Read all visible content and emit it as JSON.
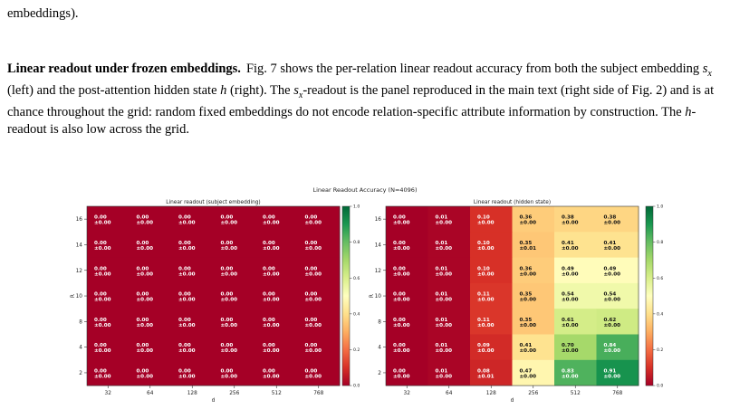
{
  "top_text": "embeddings).",
  "paragraph": {
    "heading": "Linear readout under frozen embeddings.",
    "segments": [
      {
        "t": "Fig. 7 shows the per-relation linear readout accuracy from both the subject embedding "
      },
      {
        "m": "s",
        "sub": "x"
      },
      {
        "t": " (left) and the post-attention hidden state "
      },
      {
        "m": "h"
      },
      {
        "t": " (right). The "
      },
      {
        "m": "s",
        "sub": "x"
      },
      {
        "t": "-readout is the panel reproduced in the main text (right side of Fig. 2) and is at chance throughout the grid: random fixed embeddings do not encode relation-specific attribute information by construction. The "
      },
      {
        "m": "h"
      },
      {
        "t": "-readout is also low across the grid."
      }
    ]
  },
  "chart_data": {
    "type": "heatmap",
    "suptitle": "Linear Readout Accuracy  (N=4096)",
    "x_categories": [
      "32",
      "64",
      "128",
      "256",
      "512",
      "768"
    ],
    "y_categories": [
      "16",
      "14",
      "12",
      "10",
      "8",
      "4",
      "2"
    ],
    "xlabel": "d",
    "ylabel": "R",
    "colormap": "RdYlGn",
    "color_range": [
      0.0,
      1.0
    ],
    "colorbar_ticks": [
      0.0,
      0.2,
      0.4,
      0.6,
      0.8,
      1.0
    ],
    "colorbar_tick_labels": [
      "0.0",
      "0.2",
      "0.4",
      "0.6",
      "0.8",
      "1.0"
    ],
    "panels": [
      {
        "title": "Linear readout (subject embedding)",
        "values": [
          [
            0.0,
            0.0,
            0.0,
            0.0,
            0.0,
            0.0
          ],
          [
            0.0,
            0.0,
            0.0,
            0.0,
            0.0,
            0.0
          ],
          [
            0.0,
            0.0,
            0.0,
            0.0,
            0.0,
            0.0
          ],
          [
            0.0,
            0.0,
            0.0,
            0.0,
            0.0,
            0.0
          ],
          [
            0.0,
            0.0,
            0.0,
            0.0,
            0.0,
            0.0
          ],
          [
            0.0,
            0.0,
            0.0,
            0.0,
            0.0,
            0.0
          ],
          [
            0.0,
            0.0,
            0.0,
            0.0,
            0.0,
            0.0
          ]
        ],
        "errors": [
          [
            0.0,
            0.0,
            0.0,
            0.0,
            0.0,
            0.0
          ],
          [
            0.0,
            0.0,
            0.0,
            0.0,
            0.0,
            0.0
          ],
          [
            0.0,
            0.0,
            0.0,
            0.0,
            0.0,
            0.0
          ],
          [
            0.0,
            0.0,
            0.0,
            0.0,
            0.0,
            0.0
          ],
          [
            0.0,
            0.0,
            0.0,
            0.0,
            0.0,
            0.0
          ],
          [
            0.0,
            0.0,
            0.0,
            0.0,
            0.0,
            0.0
          ],
          [
            0.0,
            0.0,
            0.0,
            0.0,
            0.0,
            0.0
          ]
        ]
      },
      {
        "title": "Linear readout (hidden state)",
        "values": [
          [
            0.0,
            0.01,
            0.1,
            0.36,
            0.38,
            0.38
          ],
          [
            0.0,
            0.01,
            0.1,
            0.35,
            0.41,
            0.41
          ],
          [
            0.0,
            0.01,
            0.1,
            0.36,
            0.49,
            0.49
          ],
          [
            0.0,
            0.01,
            0.11,
            0.35,
            0.54,
            0.54
          ],
          [
            0.0,
            0.01,
            0.11,
            0.35,
            0.61,
            0.62
          ],
          [
            0.0,
            0.01,
            0.09,
            0.41,
            0.7,
            0.84
          ],
          [
            0.0,
            0.01,
            0.08,
            0.47,
            0.83,
            0.91
          ]
        ],
        "errors": [
          [
            0.0,
            0.0,
            0.0,
            0.0,
            0.0,
            0.0
          ],
          [
            0.0,
            0.0,
            0.0,
            0.01,
            0.0,
            0.0
          ],
          [
            0.0,
            0.0,
            0.0,
            0.0,
            0.0,
            0.0
          ],
          [
            0.0,
            0.0,
            0.0,
            0.0,
            0.0,
            0.0
          ],
          [
            0.0,
            0.0,
            0.0,
            0.0,
            0.0,
            0.0
          ],
          [
            0.0,
            0.0,
            0.0,
            0.0,
            0.0,
            0.0
          ],
          [
            0.0,
            0.0,
            0.01,
            0.0,
            0.0,
            0.0
          ]
        ]
      }
    ]
  }
}
